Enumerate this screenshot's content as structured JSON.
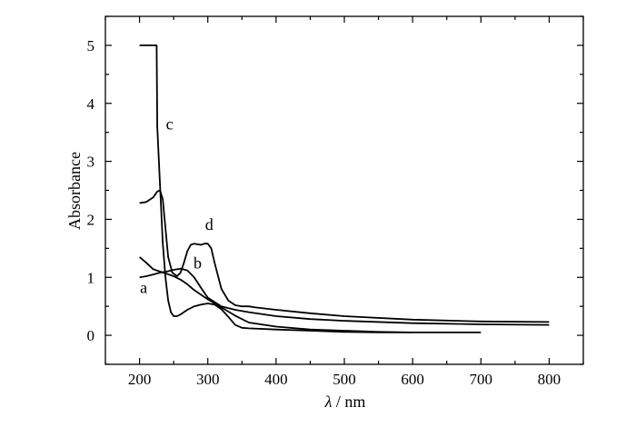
{
  "chart_data": {
    "type": "line",
    "xlim": [
      150,
      850
    ],
    "ylim": [
      -0.5,
      5.5
    ],
    "xticks": [
      200,
      300,
      400,
      500,
      600,
      700,
      800
    ],
    "yticks": [
      0,
      1,
      2,
      3,
      4,
      5
    ],
    "xlabel_symbol": "λ",
    "xlabel_unit": " / nm",
    "ylabel": "Absorbance",
    "grid": false,
    "series": [
      {
        "name": "a",
        "label_at": [
          206,
          0.73
        ],
        "x": [
          200,
          210,
          220,
          230,
          240,
          250,
          260,
          270,
          280,
          300,
          320,
          340,
          360,
          400,
          450,
          500,
          550,
          600,
          650,
          700
        ],
        "y": [
          1.35,
          1.25,
          1.14,
          1.1,
          1.06,
          1.02,
          0.96,
          0.88,
          0.78,
          0.62,
          0.48,
          0.34,
          0.22,
          0.15,
          0.1,
          0.08,
          0.06,
          0.05,
          0.05,
          0.05
        ]
      },
      {
        "name": "b",
        "label_at": [
          285,
          1.15
        ],
        "x": [
          200,
          210,
          220,
          230,
          240,
          250,
          260,
          270,
          280,
          290,
          300,
          320,
          340,
          360,
          400,
          450,
          500,
          600,
          700,
          800
        ],
        "y": [
          1.0,
          1.02,
          1.05,
          1.08,
          1.1,
          1.13,
          1.15,
          1.12,
          1.0,
          0.82,
          0.65,
          0.5,
          0.44,
          0.4,
          0.33,
          0.28,
          0.25,
          0.21,
          0.19,
          0.18
        ]
      },
      {
        "name": "c",
        "label_at": [
          244,
          3.55
        ],
        "x": [
          200,
          220,
          225,
          226,
          230,
          234,
          238,
          242,
          246,
          250,
          255,
          260,
          270,
          280,
          290,
          300,
          310,
          320,
          330,
          340,
          350,
          360,
          400,
          450,
          500,
          550,
          600
        ],
        "y": [
          5.0,
          5.0,
          5.0,
          3.6,
          2.6,
          1.6,
          1.0,
          0.6,
          0.4,
          0.33,
          0.33,
          0.36,
          0.44,
          0.5,
          0.53,
          0.55,
          0.53,
          0.45,
          0.32,
          0.18,
          0.13,
          0.12,
          0.1,
          0.08,
          0.06,
          0.05,
          0.05
        ]
      },
      {
        "name": "d",
        "label_at": [
          302,
          1.82
        ],
        "x": [
          200,
          210,
          220,
          226,
          230,
          234,
          238,
          242,
          248,
          255,
          260,
          265,
          270,
          275,
          280,
          285,
          290,
          295,
          300,
          305,
          310,
          320,
          330,
          340,
          350,
          360,
          370,
          400,
          450,
          500,
          600,
          700,
          800
        ],
        "y": [
          2.28,
          2.3,
          2.38,
          2.48,
          2.5,
          2.35,
          1.85,
          1.35,
          1.08,
          1.02,
          1.08,
          1.25,
          1.45,
          1.56,
          1.58,
          1.57,
          1.56,
          1.58,
          1.58,
          1.5,
          1.25,
          0.8,
          0.6,
          0.52,
          0.5,
          0.5,
          0.48,
          0.44,
          0.38,
          0.33,
          0.27,
          0.24,
          0.23
        ]
      }
    ]
  }
}
